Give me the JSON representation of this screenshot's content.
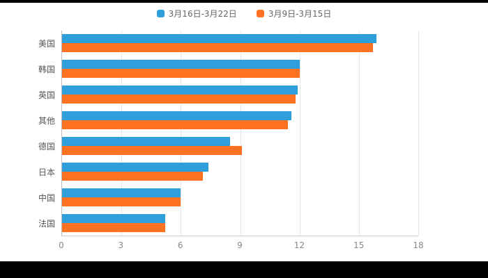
{
  "chart_data": {
    "type": "bar",
    "orientation": "horizontal",
    "title": "",
    "xlabel": "",
    "ylabel": "",
    "categories": [
      "美国",
      "韩国",
      "英国",
      "其他",
      "德国",
      "日本",
      "中国",
      "法国"
    ],
    "series": [
      {
        "name": "3月16日-3月22日",
        "color": "#2E9FDA",
        "values": [
          15.9,
          12.0,
          11.9,
          11.6,
          8.5,
          7.4,
          6.0,
          5.2
        ]
      },
      {
        "name": "3月9日-3月15日",
        "color": "#FF7221",
        "values": [
          15.7,
          12.0,
          11.8,
          11.4,
          9.1,
          7.1,
          6.0,
          5.2
        ]
      }
    ],
    "xlim": [
      0,
      18
    ],
    "xticks": [
      0,
      3,
      6,
      9,
      12,
      15,
      18
    ],
    "grid": true,
    "legend_position": "top"
  }
}
